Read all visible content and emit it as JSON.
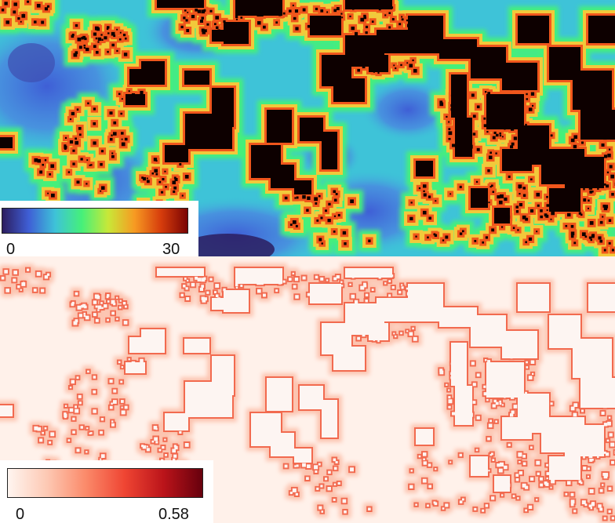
{
  "panels": [
    {
      "colormap": [
        "#2c1d5f",
        "#3f5fd6",
        "#3ec3d8",
        "#45f07a",
        "#c8e838",
        "#f79a22",
        "#d63c0c",
        "#7a0403"
      ],
      "background_color": "#3ec3d8",
      "building_color": "#0d0302",
      "colorbar": {
        "min_label": "0",
        "max_label": "30"
      }
    },
    {
      "colormap": [
        "#fff5f0",
        "#fdc9b4",
        "#fb8a6a",
        "#ef4533",
        "#bb141a",
        "#67000d"
      ],
      "background_color": "#fff1ea",
      "building_color": "#fdf5f2",
      "edge_color": "#f26a4f",
      "colorbar": {
        "min_label": "0",
        "max_label": "0.58"
      }
    }
  ]
}
